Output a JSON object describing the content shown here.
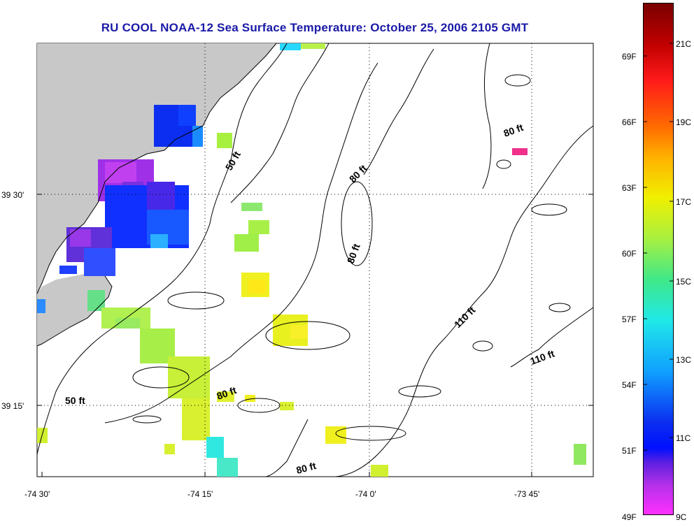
{
  "title": "RU COOL  NOAA-12  Sea Surface Temperature:  October 25, 2006 2105 GMT",
  "axes": {
    "x_ticks": [
      "-74 30'",
      "-74 15'",
      "-74 0'",
      "-73 45'"
    ],
    "y_ticks": [
      "39 30'",
      "39 15'"
    ]
  },
  "contour_labels": [
    "50 ft",
    "80 ft",
    "80 ft",
    "80 ft",
    "80 ft",
    "110 ft",
    "110 ft",
    "50 ft",
    "80 ft"
  ],
  "colorbar": {
    "fahrenheit": [
      "69F",
      "66F",
      "63F",
      "60F",
      "57F",
      "54F",
      "51F",
      "49F"
    ],
    "celsius": [
      "21C",
      "19C",
      "17C",
      "15C",
      "13C",
      "11C",
      "9C"
    ]
  },
  "colors": {
    "title": "#1a1aa8",
    "land": "#c8c8c8",
    "grid": "#000000"
  }
}
